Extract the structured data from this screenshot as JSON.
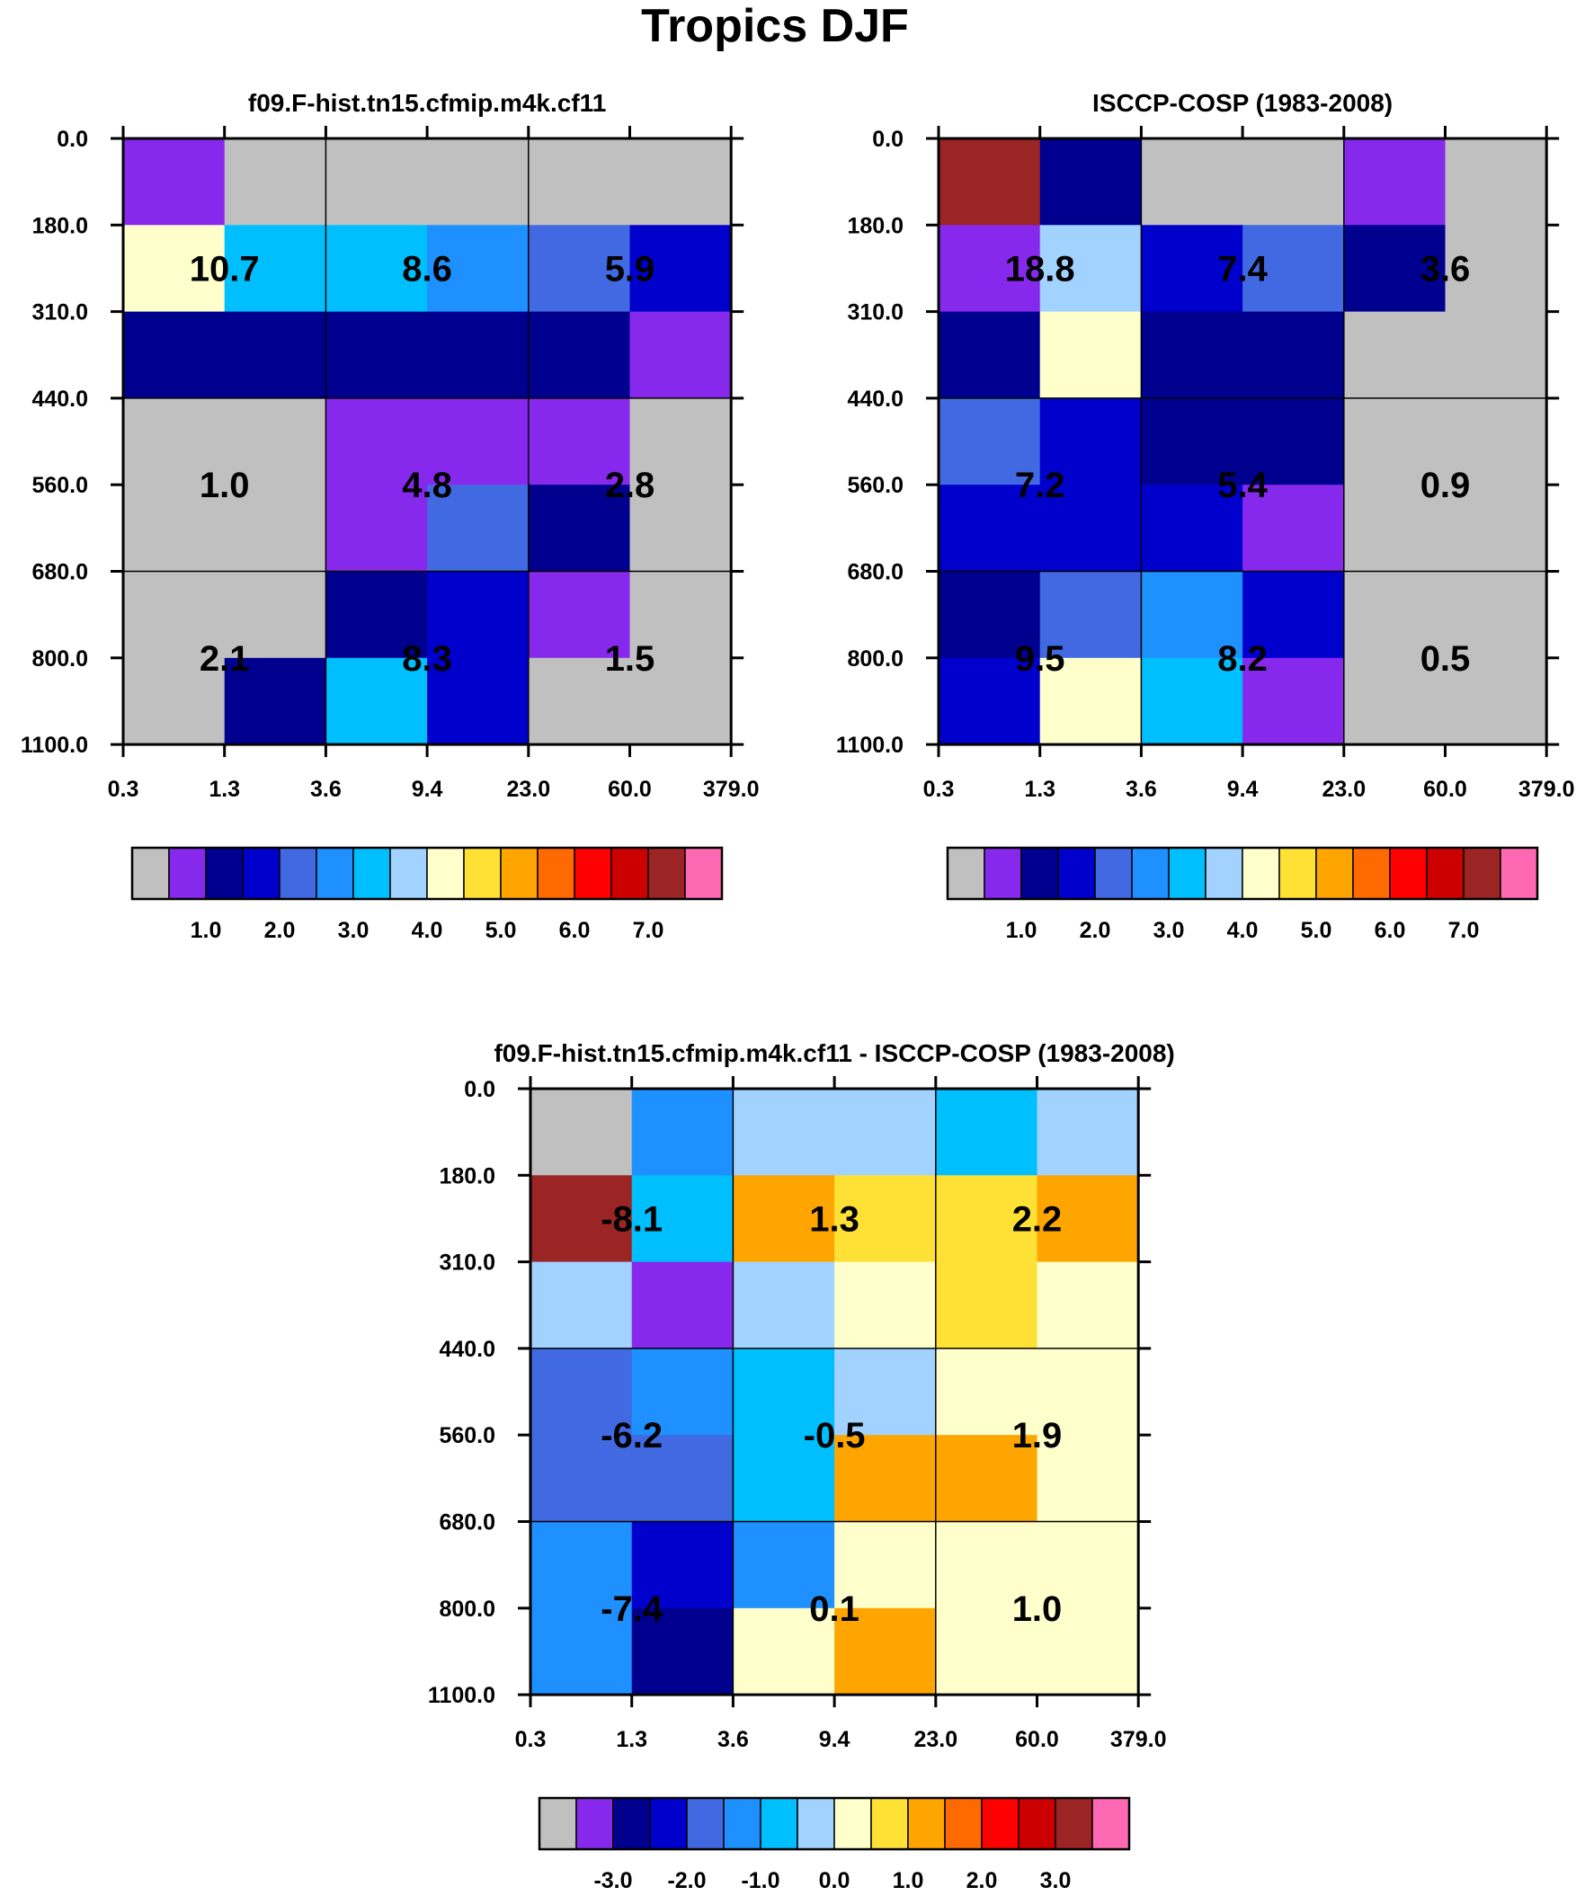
{
  "title": "Tropics DJF",
  "colors": {
    "palette": [
      "#c0c0c0",
      "#8629ec",
      "#00008f",
      "#0000cd",
      "#4169e1",
      "#1e90ff",
      "#00bfff",
      "#a2d2ff",
      "#ffffcc",
      "#ffe135",
      "#ffa500",
      "#ff6a00",
      "#ff0000",
      "#cd0000",
      "#9b2424",
      "#ff69b4"
    ]
  },
  "chart_data": [
    {
      "type": "heatmap",
      "title": "f09.F-hist.tn15.cfmip.m4k.cf11",
      "x_tick_labels": [
        "0.3",
        "1.3",
        "3.6",
        "9.4",
        "23.0",
        "60.0",
        "379.0"
      ],
      "y_tick_labels": [
        "0.0",
        "180.0",
        "310.0",
        "440.0",
        "560.0",
        "680.0",
        "800.0",
        "1100.0"
      ],
      "cell_color_index": [
        [
          1,
          0,
          0,
          0,
          0,
          0
        ],
        [
          8,
          6,
          6,
          5,
          4,
          3
        ],
        [
          2,
          2,
          2,
          2,
          2,
          1
        ],
        [
          0,
          0,
          1,
          1,
          1,
          0
        ],
        [
          0,
          0,
          1,
          4,
          2,
          0
        ],
        [
          0,
          0,
          2,
          3,
          1,
          0
        ],
        [
          0,
          2,
          6,
          3,
          0,
          0
        ]
      ],
      "annotations": [
        {
          "row_block": 0,
          "col_block": 0,
          "text": "10.7"
        },
        {
          "row_block": 0,
          "col_block": 1,
          "text": "8.6"
        },
        {
          "row_block": 0,
          "col_block": 2,
          "text": "5.9"
        },
        {
          "row_block": 1,
          "col_block": 0,
          "text": "1.0"
        },
        {
          "row_block": 1,
          "col_block": 1,
          "text": "4.8"
        },
        {
          "row_block": 1,
          "col_block": 2,
          "text": "2.8"
        },
        {
          "row_block": 2,
          "col_block": 0,
          "text": "2.1"
        },
        {
          "row_block": 2,
          "col_block": 1,
          "text": "8.3"
        },
        {
          "row_block": 2,
          "col_block": 2,
          "text": "1.5"
        }
      ],
      "colorbar": {
        "levels": [
          1.0,
          2.0,
          3.0,
          4.0,
          5.0,
          6.0,
          7.0
        ],
        "labels": [
          "1.0",
          "2.0",
          "3.0",
          "4.0",
          "5.0",
          "6.0",
          "7.0"
        ]
      }
    },
    {
      "type": "heatmap",
      "title": "ISCCP-COSP (1983-2008)",
      "x_tick_labels": [
        "0.3",
        "1.3",
        "3.6",
        "9.4",
        "23.0",
        "60.0",
        "379.0"
      ],
      "y_tick_labels": [
        "0.0",
        "180.0",
        "310.0",
        "440.0",
        "560.0",
        "680.0",
        "800.0",
        "1100.0"
      ],
      "cell_color_index": [
        [
          14,
          2,
          0,
          0,
          1,
          0
        ],
        [
          1,
          7,
          3,
          4,
          2,
          0
        ],
        [
          2,
          8,
          2,
          2,
          0,
          0
        ],
        [
          4,
          3,
          2,
          2,
          0,
          0
        ],
        [
          3,
          3,
          3,
          1,
          0,
          0
        ],
        [
          2,
          4,
          5,
          3,
          0,
          0
        ],
        [
          3,
          8,
          6,
          1,
          0,
          0
        ]
      ],
      "annotations": [
        {
          "row_block": 0,
          "col_block": 0,
          "text": "18.8"
        },
        {
          "row_block": 0,
          "col_block": 1,
          "text": "7.4"
        },
        {
          "row_block": 0,
          "col_block": 2,
          "text": "3.6"
        },
        {
          "row_block": 1,
          "col_block": 0,
          "text": "7.2"
        },
        {
          "row_block": 1,
          "col_block": 1,
          "text": "5.4"
        },
        {
          "row_block": 1,
          "col_block": 2,
          "text": "0.9"
        },
        {
          "row_block": 2,
          "col_block": 0,
          "text": "9.5"
        },
        {
          "row_block": 2,
          "col_block": 1,
          "text": "8.2"
        },
        {
          "row_block": 2,
          "col_block": 2,
          "text": "0.5"
        }
      ],
      "colorbar": {
        "levels": [
          1.0,
          2.0,
          3.0,
          4.0,
          5.0,
          6.0,
          7.0
        ],
        "labels": [
          "1.0",
          "2.0",
          "3.0",
          "4.0",
          "5.0",
          "6.0",
          "7.0"
        ]
      }
    },
    {
      "type": "heatmap",
      "title": "f09.F-hist.tn15.cfmip.m4k.cf11 - ISCCP-COSP (1983-2008)",
      "x_tick_labels": [
        "0.3",
        "1.3",
        "3.6",
        "9.4",
        "23.0",
        "60.0",
        "379.0"
      ],
      "y_tick_labels": [
        "0.0",
        "180.0",
        "310.0",
        "440.0",
        "560.0",
        "680.0",
        "800.0",
        "1100.0"
      ],
      "cell_color_index": [
        [
          0,
          5,
          7,
          7,
          6,
          7
        ],
        [
          14,
          6,
          10,
          9,
          9,
          10
        ],
        [
          7,
          1,
          7,
          8,
          9,
          8
        ],
        [
          4,
          5,
          6,
          7,
          8,
          8
        ],
        [
          4,
          4,
          6,
          10,
          10,
          8
        ],
        [
          5,
          3,
          5,
          8,
          8,
          8
        ],
        [
          5,
          2,
          8,
          10,
          8,
          8
        ]
      ],
      "annotations": [
        {
          "row_block": 0,
          "col_block": 0,
          "text": "-8.1"
        },
        {
          "row_block": 0,
          "col_block": 1,
          "text": "1.3"
        },
        {
          "row_block": 0,
          "col_block": 2,
          "text": "2.2"
        },
        {
          "row_block": 1,
          "col_block": 0,
          "text": "-6.2"
        },
        {
          "row_block": 1,
          "col_block": 1,
          "text": "-0.5"
        },
        {
          "row_block": 1,
          "col_block": 2,
          "text": "1.9"
        },
        {
          "row_block": 2,
          "col_block": 0,
          "text": "-7.4"
        },
        {
          "row_block": 2,
          "col_block": 1,
          "text": "0.1"
        },
        {
          "row_block": 2,
          "col_block": 2,
          "text": "1.0"
        }
      ],
      "colorbar": {
        "levels": [
          -3.0,
          -2.0,
          -1.0,
          0.0,
          1.0,
          2.0,
          3.0
        ],
        "labels": [
          "-3.0",
          "-2.0",
          "-1.0",
          "0.0",
          "1.0",
          "2.0",
          "3.0"
        ]
      }
    }
  ]
}
